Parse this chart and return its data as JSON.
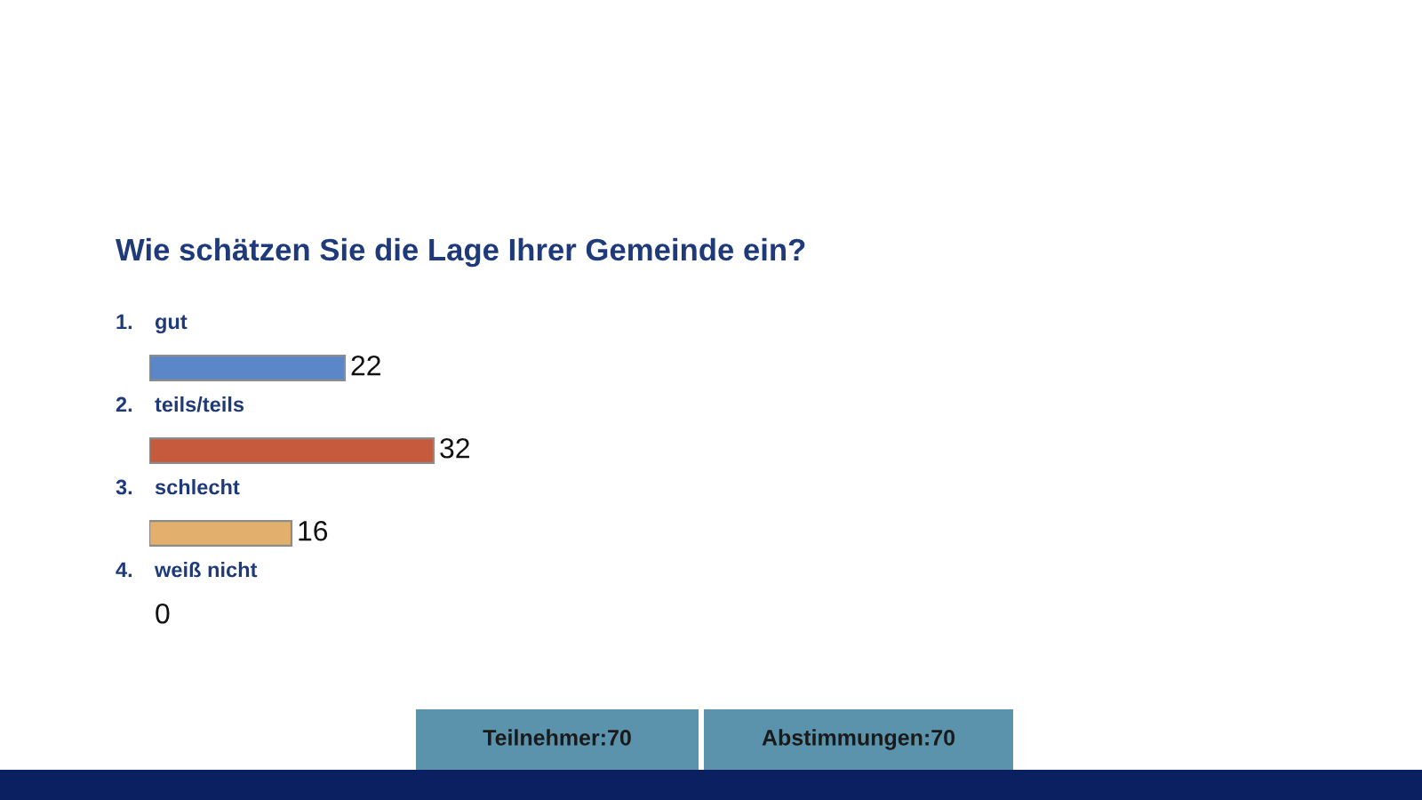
{
  "chart_data": {
    "type": "bar",
    "orientation": "horizontal",
    "title": "Wie schätzen Sie die Lage Ihrer Gemeinde ein?",
    "categories": [
      "1. gut",
      "2. teils/teils",
      "3. schlecht",
      "4. weiß nicht"
    ],
    "values": [
      22,
      32,
      16,
      0
    ],
    "data_labels": true,
    "colors": [
      "#5b87c8",
      "#c65a3c",
      "#e2b06c",
      null
    ],
    "tick_labels": "y",
    "annotations": [
      "Teilnehmer:70",
      "Abstimmungen:70"
    ]
  }
}
